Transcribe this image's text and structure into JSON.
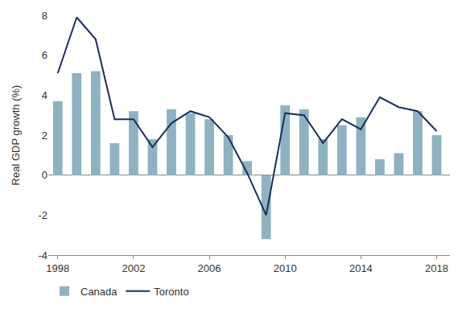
{
  "chart_data": {
    "type": "bar",
    "y_label": "Real GDP growth (%)",
    "x": [
      1998,
      1999,
      2000,
      2001,
      2002,
      2003,
      2004,
      2005,
      2006,
      2007,
      2008,
      2009,
      2010,
      2011,
      2012,
      2013,
      2014,
      2015,
      2016,
      2017,
      2018
    ],
    "series": [
      {
        "name": "Canada",
        "type": "bar",
        "color": "#8fb2c1",
        "values": [
          3.7,
          5.1,
          5.2,
          1.6,
          3.2,
          1.8,
          3.3,
          3.1,
          2.8,
          2.0,
          0.7,
          -3.2,
          3.5,
          3.3,
          1.8,
          2.5,
          2.9,
          0.8,
          1.1,
          3.2,
          2.0
        ]
      },
      {
        "name": "Toronto",
        "type": "line",
        "color": "#1b2f5c",
        "line_style": "solid",
        "values": [
          5.1,
          7.9,
          6.8,
          2.8,
          2.8,
          1.4,
          2.6,
          3.2,
          2.9,
          1.9,
          0.1,
          -2.0,
          3.1,
          3.0,
          1.6,
          2.8,
          2.3,
          3.9,
          3.4,
          3.2,
          2.2
        ]
      }
    ],
    "xlim": [
      1997.5,
      2018.7
    ],
    "xticks": [
      1998,
      2002,
      2006,
      2010,
      2014,
      2018
    ],
    "ylim": [
      -4,
      8
    ],
    "yticks": [
      -4,
      -2,
      0,
      2,
      4,
      6,
      8
    ],
    "grid": false,
    "legend": "bottom left"
  }
}
